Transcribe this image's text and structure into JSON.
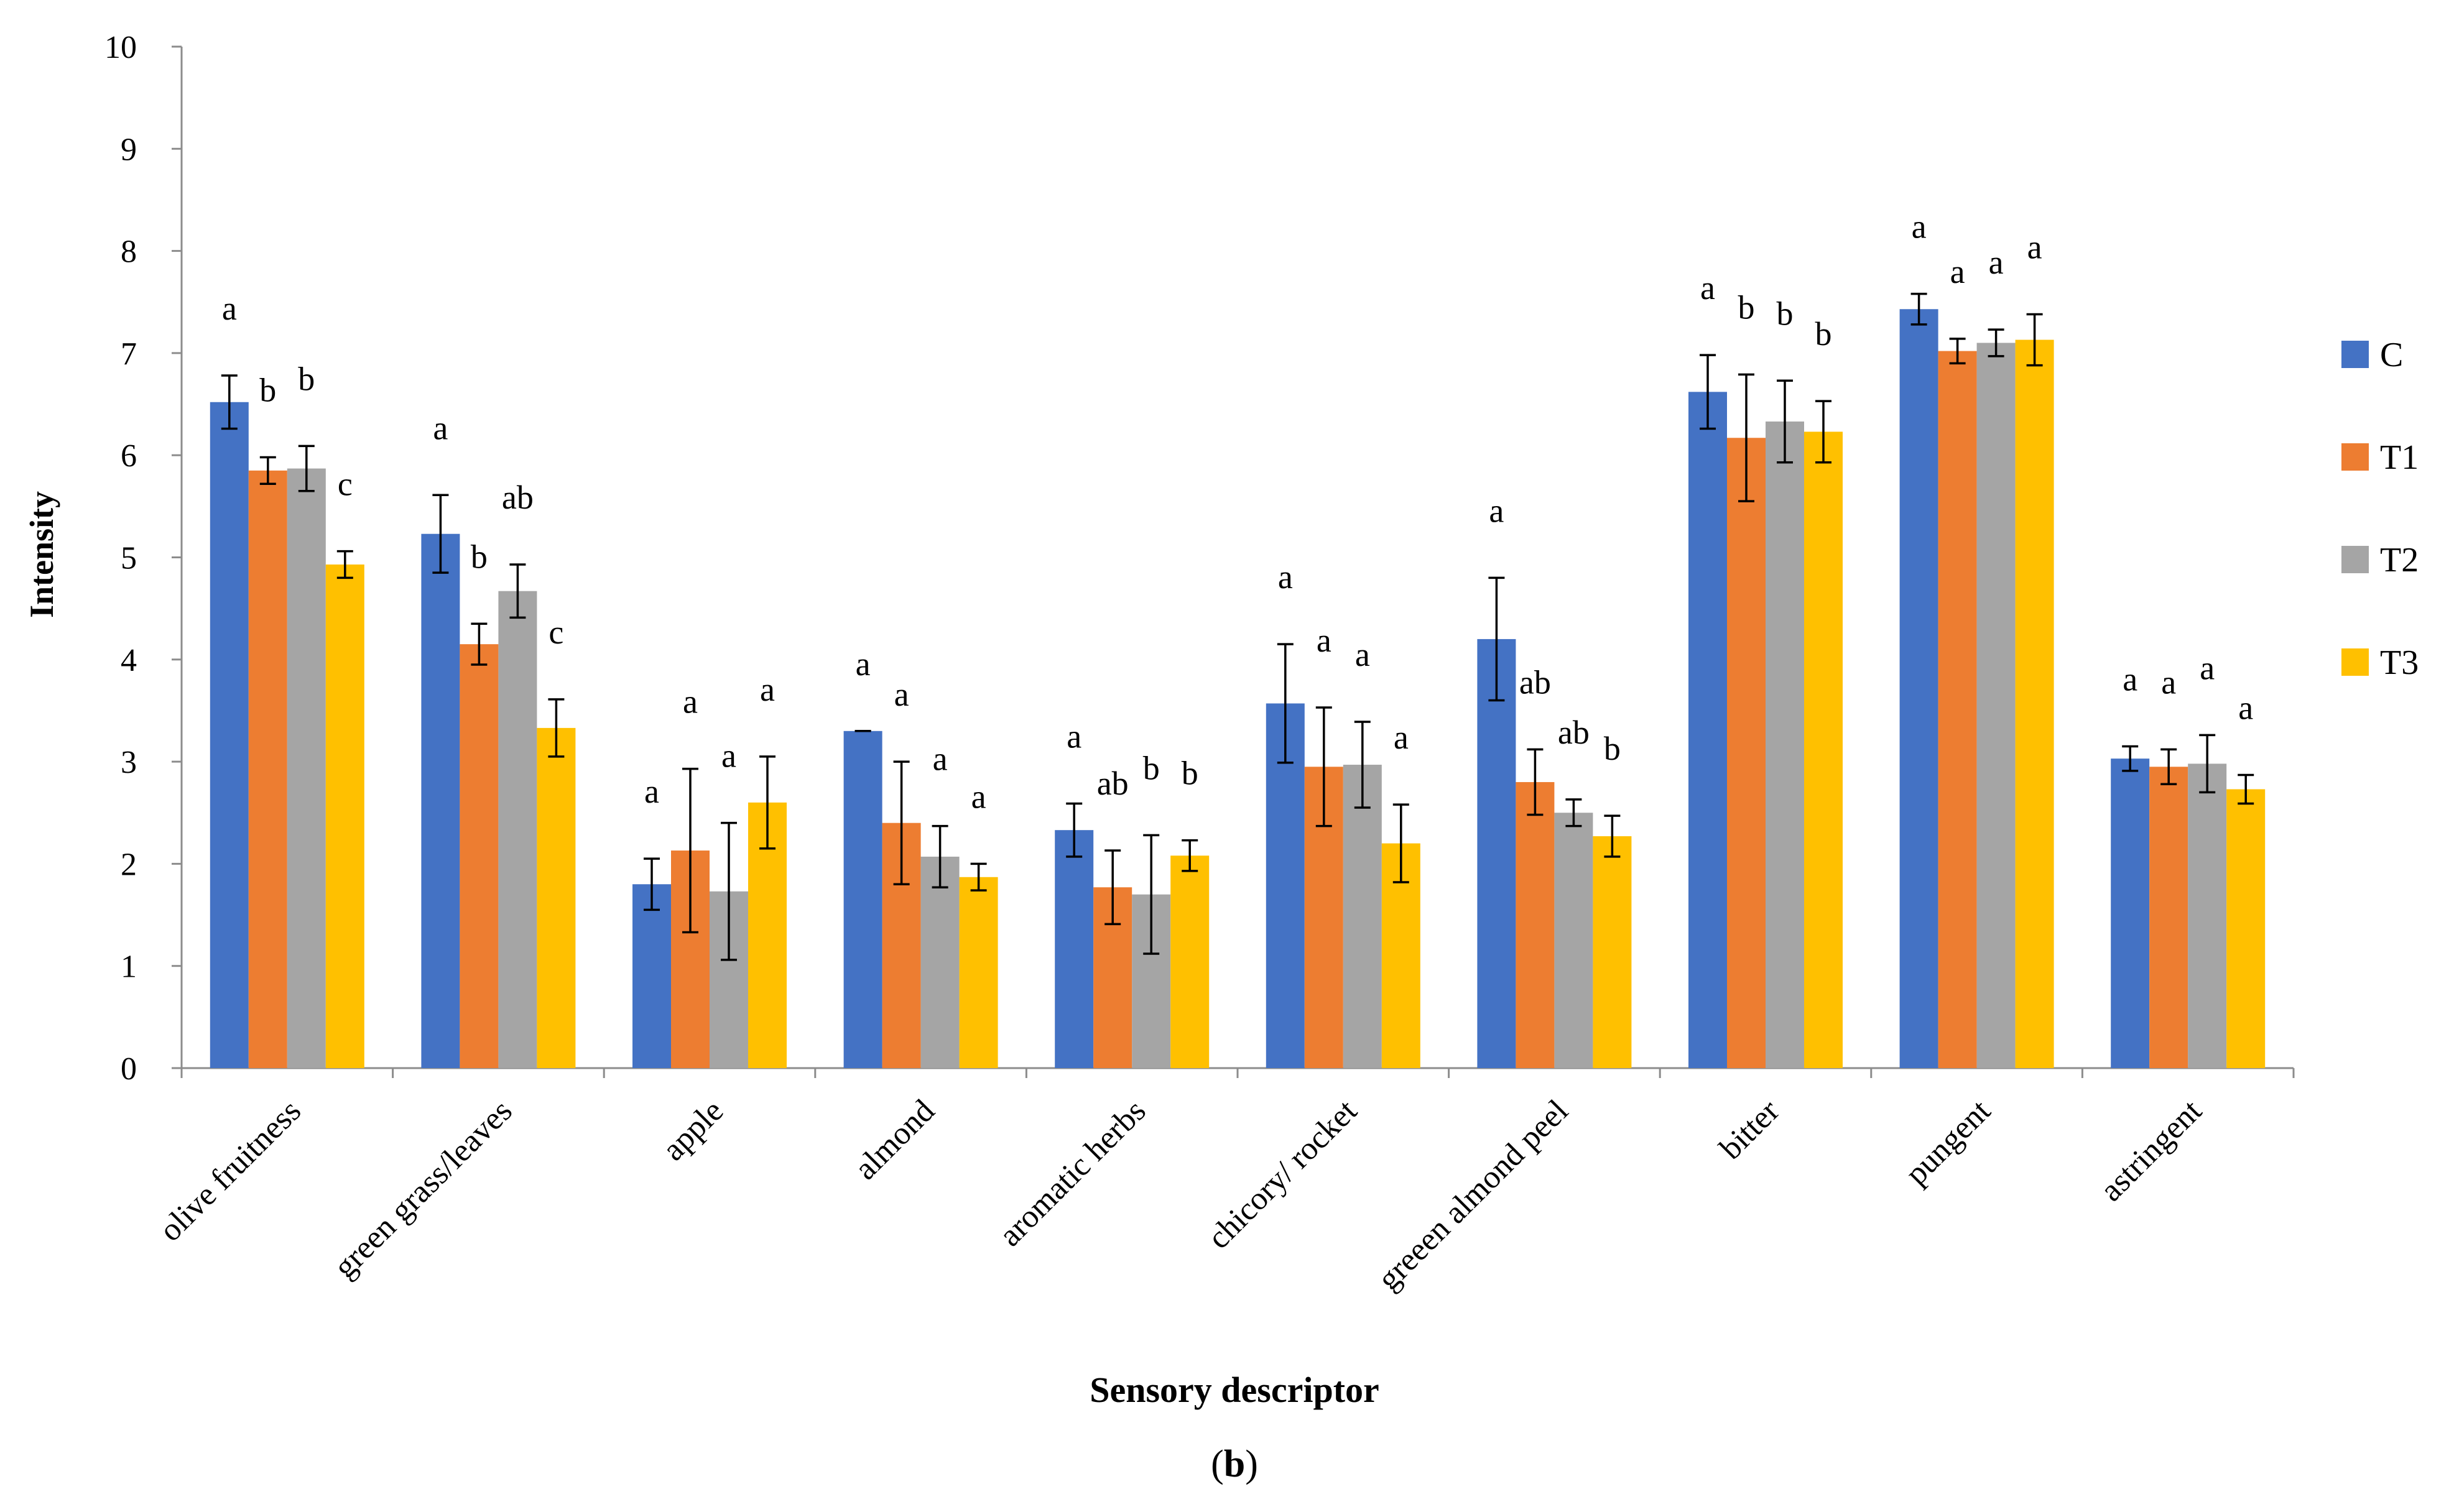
{
  "chart_data": {
    "type": "bar",
    "title": "",
    "xlabel": "Sensory descriptor",
    "ylabel": "Intensity",
    "caption_prefix": "(",
    "caption_letter": "b",
    "caption_suffix": ")",
    "ylim": [
      0,
      10
    ],
    "yticks": [
      "0",
      "1",
      "2",
      "3",
      "4",
      "5",
      "6",
      "7",
      "8",
      "9",
      "10"
    ],
    "grid": false,
    "legend_position": "right",
    "categories": [
      "olive fruitness",
      "green grass/leaves",
      "apple",
      "almond",
      "aromatic herbs",
      "chicory/ rocket",
      "greeen almond peel",
      "bitter",
      "pungent",
      "astringent"
    ],
    "series": [
      {
        "name": "C",
        "color": "#4472C4",
        "values": [
          6.52,
          5.23,
          1.8,
          3.3,
          2.33,
          3.57,
          4.2,
          6.62,
          7.43,
          3.03
        ],
        "errors": [
          0.26,
          0.38,
          0.25,
          0.0,
          0.26,
          0.58,
          0.6,
          0.36,
          0.15,
          0.12
        ],
        "letters": [
          "a",
          "a",
          "a",
          "a",
          "a",
          "a",
          "a",
          "a",
          "a",
          "a"
        ]
      },
      {
        "name": "T1",
        "color": "#ED7D31",
        "values": [
          5.85,
          4.15,
          2.13,
          2.4,
          1.77,
          2.95,
          2.8,
          6.17,
          7.02,
          2.95
        ],
        "errors": [
          0.13,
          0.2,
          0.8,
          0.6,
          0.36,
          0.58,
          0.32,
          0.62,
          0.12,
          0.17
        ],
        "letters": [
          "b",
          "b",
          "a",
          "a",
          "ab",
          "a",
          "ab",
          "b",
          "a",
          "a"
        ]
      },
      {
        "name": "T2",
        "color": "#A5A5A5",
        "values": [
          5.87,
          4.67,
          1.73,
          2.07,
          1.7,
          2.97,
          2.5,
          6.33,
          7.1,
          2.98
        ],
        "errors": [
          0.22,
          0.26,
          0.67,
          0.3,
          0.58,
          0.42,
          0.13,
          0.4,
          0.13,
          0.28
        ],
        "letters": [
          "b",
          "ab",
          "a",
          "a",
          "b",
          "a",
          "ab",
          "b",
          "a",
          "a"
        ]
      },
      {
        "name": "T3",
        "color": "#FFC000",
        "values": [
          4.93,
          3.33,
          2.6,
          1.87,
          2.08,
          2.2,
          2.27,
          6.23,
          7.13,
          2.73
        ],
        "errors": [
          0.13,
          0.28,
          0.45,
          0.13,
          0.15,
          0.38,
          0.2,
          0.3,
          0.25,
          0.14
        ],
        "letters": [
          "c",
          "c",
          "a",
          "a",
          "b",
          "a",
          "b",
          "b",
          "a",
          "a"
        ]
      }
    ]
  }
}
